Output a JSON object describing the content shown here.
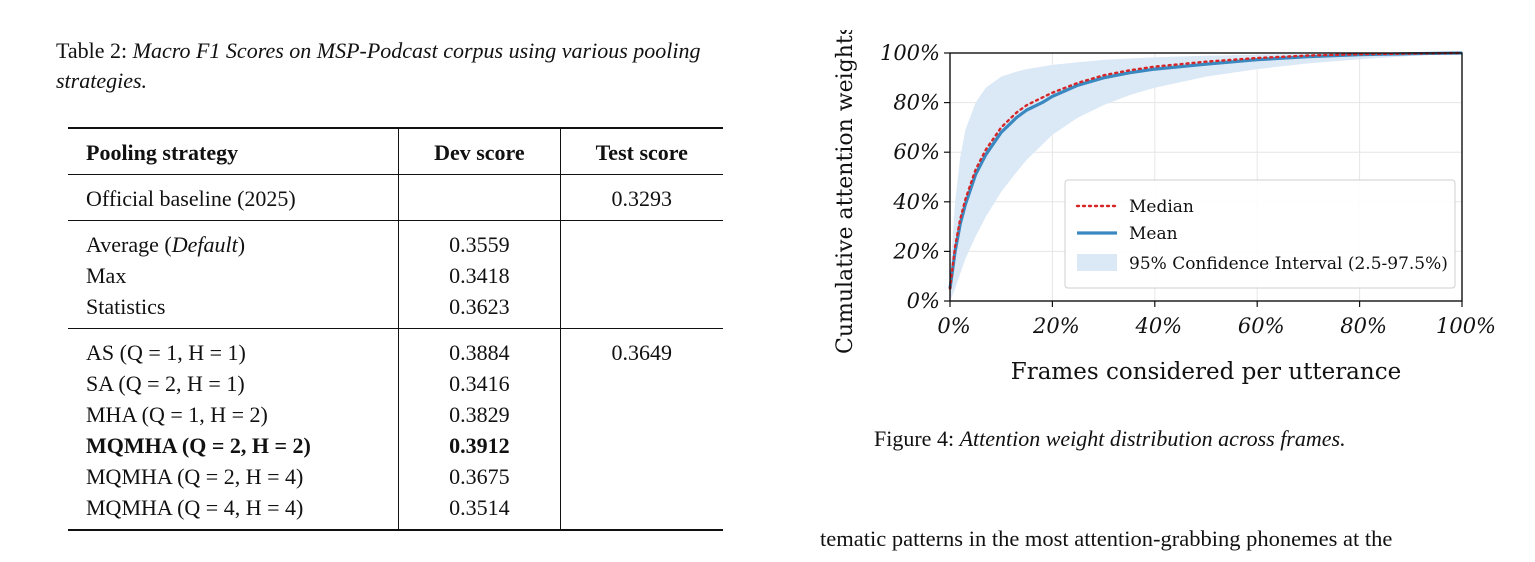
{
  "table": {
    "caption_label": "Table 2:",
    "caption_text": "Macro F1 Scores on MSP-Podcast corpus using various pooling strategies.",
    "headers": [
      "Pooling strategy",
      "Dev score",
      "Test score"
    ],
    "groups": [
      {
        "rows": [
          {
            "strategy": "Official baseline (2025)",
            "dev": "",
            "test": "0.3293",
            "bold": false
          }
        ]
      },
      {
        "rows": [
          {
            "strategy": "Average (Default)",
            "dev": "0.3559",
            "test": "",
            "bold": false
          },
          {
            "strategy": "Max",
            "dev": "0.3418",
            "test": "",
            "bold": false
          },
          {
            "strategy": "Statistics",
            "dev": "0.3623",
            "test": "",
            "bold": false
          }
        ]
      },
      {
        "rows": [
          {
            "strategy": "AS (Q = 1, H = 1)",
            "dev": "0.3884",
            "test": "0.3649",
            "bold": false
          },
          {
            "strategy": "SA (Q = 2, H = 1)",
            "dev": "0.3416",
            "test": "",
            "bold": false
          },
          {
            "strategy": "MHA (Q = 1, H = 2)",
            "dev": "0.3829",
            "test": "",
            "bold": false
          },
          {
            "strategy": "MQMHA (Q = 2, H = 2)",
            "dev": "0.3912",
            "test": "",
            "bold": true
          },
          {
            "strategy": "MQMHA (Q = 2, H = 4)",
            "dev": "0.3675",
            "test": "",
            "bold": false
          },
          {
            "strategy": "MQMHA (Q = 4, H = 4)",
            "dev": "0.3514",
            "test": "",
            "bold": false
          }
        ]
      }
    ]
  },
  "figure": {
    "caption_label": "Figure 4:",
    "caption_text": "Attention weight distribution across frames."
  },
  "body_text": "tematic patterns in the most attention-grabbing phonemes at the",
  "colors": {
    "median": "#d62728",
    "mean": "#3a88c0",
    "ci_fill": "#dbe8f6",
    "grid": "#e6e6e6"
  },
  "chart_data": {
    "type": "line",
    "title": "",
    "xlabel": "Frames considered per utterance",
    "ylabel": "Cumulative attention weights",
    "xlim": [
      0,
      100
    ],
    "ylim": [
      0,
      100
    ],
    "xticks": [
      "0%",
      "20%",
      "40%",
      "60%",
      "80%",
      "100%"
    ],
    "yticks": [
      "0%",
      "20%",
      "40%",
      "60%",
      "80%",
      "100%"
    ],
    "grid": true,
    "legend_position": "bottom-right",
    "x": [
      0,
      1,
      2,
      3,
      5,
      7,
      10,
      13,
      15,
      18,
      20,
      25,
      30,
      35,
      40,
      50,
      60,
      70,
      80,
      90,
      100
    ],
    "series": [
      {
        "name": "Median",
        "style": "dotted",
        "values": [
          5,
          22,
          33,
          41,
          53,
          61,
          70,
          76,
          79,
          82,
          84,
          88,
          91,
          93,
          94.5,
          96.5,
          98,
          99,
          99.5,
          99.8,
          100
        ]
      },
      {
        "name": "Mean",
        "style": "solid",
        "values": [
          5,
          20,
          31,
          39,
          51,
          59,
          68,
          74,
          77,
          80,
          82.5,
          87,
          90,
          92,
          93.5,
          95.5,
          97.3,
          98.5,
          99.3,
          99.7,
          100
        ]
      }
    ],
    "band": {
      "name": "95% Confidence Interval (2.5-97.5%)",
      "lower": [
        0,
        5,
        11,
        17,
        26,
        34,
        44,
        52,
        57,
        63,
        67,
        74,
        79,
        83,
        86,
        90.5,
        93.5,
        95.8,
        97.5,
        98.8,
        100
      ],
      "upper": [
        10,
        40,
        58,
        69,
        80,
        86,
        90.5,
        92.5,
        93.5,
        94.5,
        95.2,
        96.3,
        97.2,
        97.8,
        98.3,
        98.9,
        99.3,
        99.6,
        99.8,
        99.9,
        100
      ]
    }
  }
}
